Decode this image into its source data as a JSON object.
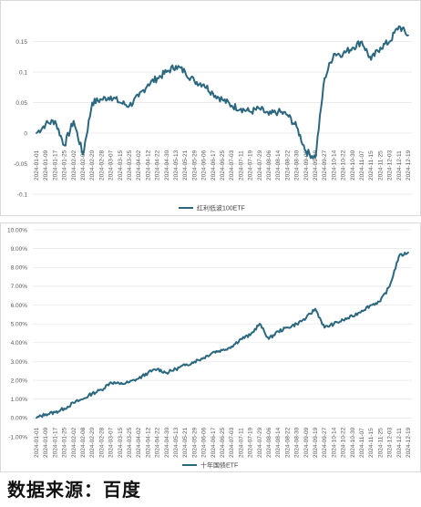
{
  "chart_data": [
    {
      "type": "line",
      "series": [
        {
          "name": "红利低波100ETF",
          "color": "#2b6880",
          "x": [
            "2024-01-01",
            "2024-01-09",
            "2024-01-17",
            "2024-01-25",
            "2024-02-02",
            "2024-02-08",
            "2024-02-20",
            "2024-02-28",
            "2024-03-07",
            "2024-03-15",
            "2024-03-25",
            "2024-04-02",
            "2024-04-12",
            "2024-04-22",
            "2024-04-30",
            "2024-05-13",
            "2024-05-21",
            "2024-05-29",
            "2024-06-06",
            "2024-06-17",
            "2024-06-25",
            "2024-07-03",
            "2024-07-11",
            "2024-07-19",
            "2024-07-29",
            "2024-08-06",
            "2024-08-14",
            "2024-08-22",
            "2024-08-30",
            "2024-09-09",
            "2024-09-19",
            "2024-09-27",
            "2024-10-14",
            "2024-10-22",
            "2024-10-30",
            "2024-11-07",
            "2024-11-15",
            "2024-11-25",
            "2024-12-03",
            "2024-12-11",
            "2024-12-19"
          ],
          "values": [
            0.0,
            0.015,
            0.02,
            -0.02,
            0.02,
            -0.035,
            0.05,
            0.055,
            0.06,
            0.05,
            0.045,
            0.06,
            0.08,
            0.09,
            0.1,
            0.11,
            0.1,
            0.085,
            0.08,
            0.065,
            0.055,
            0.045,
            0.04,
            0.035,
            0.04,
            0.03,
            0.035,
            0.03,
            0.01,
            -0.03,
            -0.04,
            0.09,
            0.13,
            0.13,
            0.14,
            0.15,
            0.12,
            0.14,
            0.15,
            0.175,
            0.16
          ]
        }
      ],
      "ylim": [
        -0.1,
        0.2
      ],
      "yticks": [
        "0.15",
        "0.1",
        "0.05",
        "0",
        "-0.05",
        "-0.1"
      ],
      "grid": true,
      "legend": "bottom"
    },
    {
      "type": "line",
      "series": [
        {
          "name": "十年国债ETF",
          "color": "#2b6880",
          "x": [
            "2024-01-01",
            "2024-01-09",
            "2024-01-17",
            "2024-01-25",
            "2024-02-02",
            "2024-02-08",
            "2024-02-20",
            "2024-02-28",
            "2024-03-07",
            "2024-03-15",
            "2024-03-25",
            "2024-04-02",
            "2024-04-12",
            "2024-04-22",
            "2024-04-30",
            "2024-05-13",
            "2024-05-21",
            "2024-05-29",
            "2024-06-06",
            "2024-06-17",
            "2024-06-25",
            "2024-07-03",
            "2024-07-11",
            "2024-07-19",
            "2024-07-29",
            "2024-08-06",
            "2024-08-14",
            "2024-08-22",
            "2024-08-30",
            "2024-09-09",
            "2024-09-19",
            "2024-09-27",
            "2024-10-14",
            "2024-10-22",
            "2024-10-30",
            "2024-11-07",
            "2024-11-15",
            "2024-11-25",
            "2024-12-03",
            "2024-12-11",
            "2024-12-19"
          ],
          "values": [
            0.0,
            0.2,
            0.3,
            0.5,
            0.8,
            1.0,
            1.3,
            1.5,
            1.9,
            1.8,
            1.9,
            2.1,
            2.4,
            2.6,
            2.4,
            2.6,
            2.8,
            3.0,
            3.2,
            3.5,
            3.6,
            3.8,
            4.2,
            4.4,
            5.0,
            4.2,
            4.6,
            4.8,
            5.0,
            5.3,
            5.8,
            4.8,
            5.0,
            5.2,
            5.4,
            5.7,
            6.0,
            6.2,
            7.0,
            8.6,
            8.8
          ]
        }
      ],
      "ylim": [
        -1.0,
        10.0
      ],
      "yticks": [
        "10.00%",
        "9.00%",
        "8.00%",
        "7.00%",
        "6.00%",
        "5.00%",
        "4.00%",
        "3.00%",
        "2.00%",
        "1.00%",
        "0.00%",
        "-1.00%"
      ],
      "grid": true,
      "legend": "bottom"
    }
  ],
  "footer": {
    "source_text": "数据来源：百度"
  }
}
